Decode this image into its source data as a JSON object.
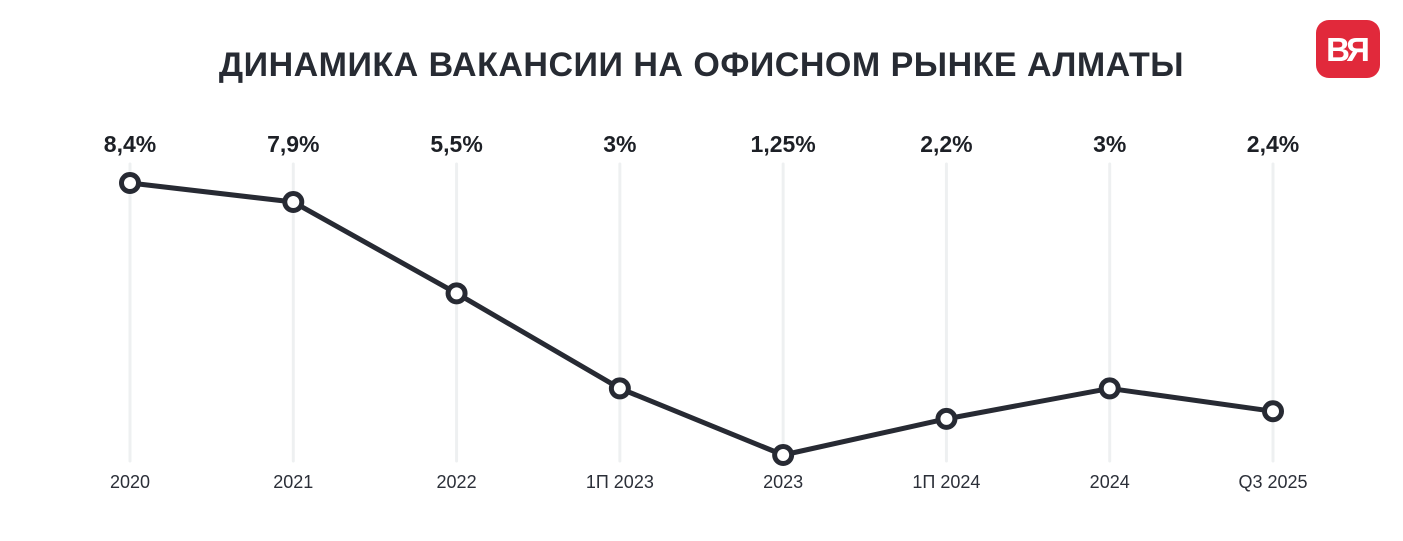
{
  "header": {
    "title": "ДИНАМИКА ВАКАНСИИ НА ОФИСНОМ РЫНКЕ АЛМАТЫ",
    "logo": {
      "letter_b": "B",
      "letter_r": "R"
    }
  },
  "colors": {
    "title": "#272b33",
    "line": "#272a33",
    "marker_fill": "#ffffff",
    "gridline": "#eef0f1",
    "value_label": "#1d2026",
    "axis_label": "#2b2f38",
    "logo_background": "#e1293b",
    "logo_text": "#ffffff",
    "background": "#ffffff"
  },
  "chart_data": {
    "type": "line",
    "title": "ДИНАМИКА ВАКАНСИИ НА ОФИСНОМ РЫНКЕ АЛМАТЫ",
    "categories": [
      "2020",
      "2021",
      "2022",
      "1П 2023",
      "2023",
      "1П 2024",
      "2024",
      "Q3 2025"
    ],
    "values": [
      8.4,
      7.9,
      5.5,
      3,
      1.25,
      2.2,
      3,
      2.4
    ],
    "value_labels": [
      "8,4%",
      "7,9%",
      "5,5%",
      "3%",
      "1,25%",
      "2,2%",
      "3%",
      "2,4%"
    ],
    "unit": "%",
    "xlabel": "",
    "ylabel": "",
    "ylim": [
      0,
      9
    ],
    "grid": "vertical category gridlines",
    "legend": "none",
    "marker": "open-circle"
  }
}
